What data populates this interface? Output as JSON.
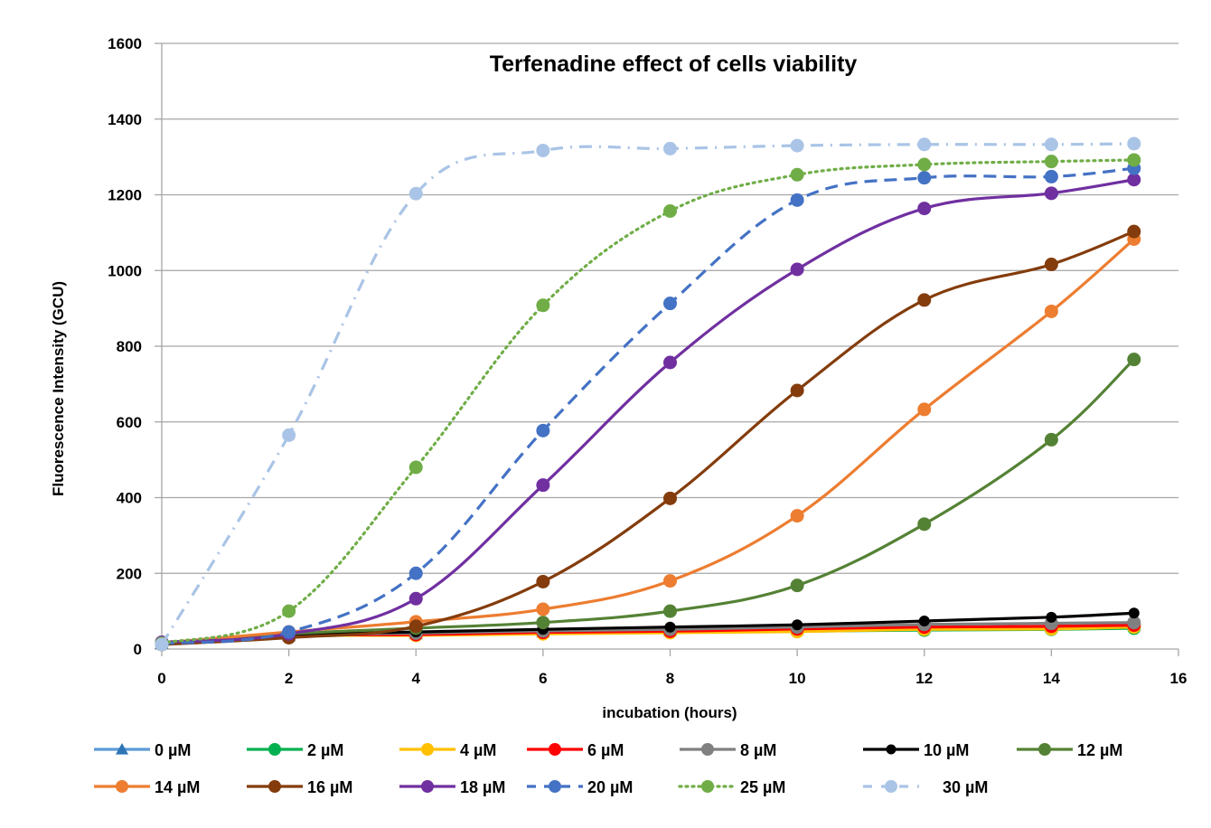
{
  "chart_data": {
    "type": "line",
    "title": "Terfenadine effect of cells viability",
    "xlabel": "incubation (hours)",
    "ylabel": "Fluorescence Intensity (GCU)",
    "xlim": [
      0,
      16
    ],
    "ylim": [
      0,
      1600
    ],
    "xticks": [
      0,
      2,
      4,
      6,
      8,
      10,
      12,
      14,
      16
    ],
    "yticks": [
      0,
      200,
      400,
      600,
      800,
      1000,
      1200,
      1400,
      1600
    ],
    "grid": "horizontal",
    "legend_position": "bottom",
    "x": [
      0,
      2,
      4,
      6,
      8,
      10,
      12,
      14,
      15.3
    ],
    "series": [
      {
        "name": "0 µM",
        "color": "#5B9BD5",
        "dash": "solid",
        "marker": "triangle",
        "values": [
          15,
          35,
          40,
          45,
          48,
          52,
          58,
          60,
          65
        ]
      },
      {
        "name": "2 µM",
        "color": "#00B050",
        "dash": "solid",
        "marker": "circle",
        "values": [
          12,
          33,
          38,
          42,
          44,
          47,
          50,
          52,
          55
        ]
      },
      {
        "name": "4 µM",
        "color": "#FFC000",
        "dash": "solid",
        "marker": "circle",
        "values": [
          13,
          34,
          36,
          40,
          43,
          46,
          52,
          53,
          58
        ]
      },
      {
        "name": "6 µM",
        "color": "#FF0000",
        "dash": "solid",
        "marker": "circle",
        "values": [
          14,
          35,
          38,
          44,
          47,
          53,
          58,
          60,
          63
        ]
      },
      {
        "name": "8 µM",
        "color": "#808080",
        "dash": "solid",
        "marker": "circle",
        "values": [
          14,
          36,
          42,
          48,
          52,
          58,
          65,
          68,
          70
        ]
      },
      {
        "name": "10 µM",
        "color": "#000000",
        "dash": "solid",
        "marker": "circle",
        "values": [
          15,
          38,
          45,
          52,
          58,
          64,
          74,
          84,
          95
        ]
      },
      {
        "name": "12 µM",
        "color": "#548235",
        "dash": "solid",
        "marker": "circle",
        "values": [
          15,
          40,
          55,
          70,
          100,
          168,
          330,
          553,
          765
        ]
      },
      {
        "name": "14 µM",
        "color": "#ED7D31",
        "dash": "solid",
        "marker": "circle",
        "values": [
          16,
          45,
          72,
          105,
          180,
          352,
          633,
          892,
          1083
        ]
      },
      {
        "name": "16 µM",
        "color": "#843C0C",
        "dash": "solid",
        "marker": "circle",
        "values": [
          12,
          30,
          60,
          178,
          398,
          683,
          922,
          1016,
          1103
        ]
      },
      {
        "name": "18 µM",
        "color": "#7030A0",
        "dash": "solid",
        "marker": "circle",
        "values": [
          18,
          40,
          133,
          433,
          757,
          1003,
          1164,
          1204,
          1240
        ]
      },
      {
        "name": "20 µM",
        "color": "#4472C4",
        "dash": "dashed",
        "marker": "circle",
        "values": [
          14,
          45,
          200,
          577,
          913,
          1186,
          1245,
          1248,
          1270
        ]
      },
      {
        "name": "25 µM",
        "color": "#70AD47",
        "dash": "dotted",
        "marker": "circle",
        "values": [
          15,
          100,
          480,
          908,
          1157,
          1253,
          1280,
          1288,
          1292
        ]
      },
      {
        "name": "30 µM",
        "color": "#A9C4E6",
        "dash": "dashdot",
        "marker": "circle",
        "values": [
          12,
          565,
          1203,
          1317,
          1322,
          1330,
          1333,
          1333,
          1335
        ]
      }
    ]
  }
}
